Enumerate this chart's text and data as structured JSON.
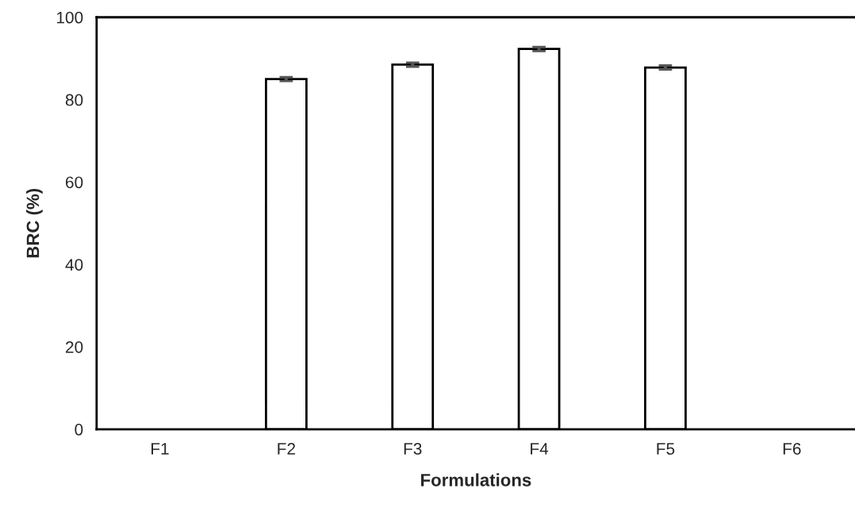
{
  "chart_data": {
    "type": "bar",
    "xlabel": "Formulations",
    "ylabel": "BRC (%)",
    "categories": [
      "F1",
      "F2",
      "F3",
      "F4",
      "F5",
      "F6"
    ],
    "values": [
      null,
      85.0,
      88.5,
      92.3,
      87.8,
      null
    ],
    "errors": [
      null,
      0.5,
      0.5,
      0.5,
      0.5,
      null
    ],
    "color": "#ffffff",
    "ylim": [
      0,
      100
    ],
    "yticks": [
      0,
      20,
      40,
      60,
      80,
      100
    ],
    "grid": false,
    "legend": false
  }
}
